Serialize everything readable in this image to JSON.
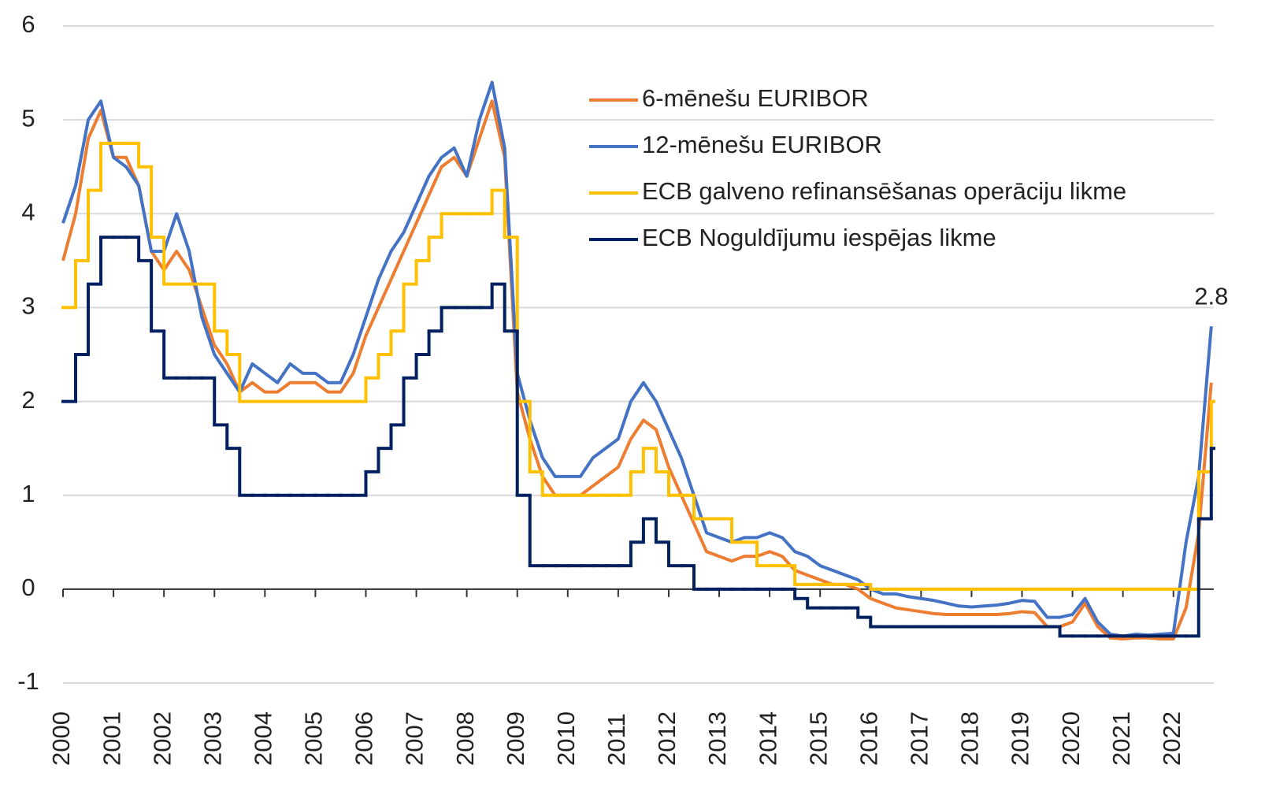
{
  "chart_data": {
    "type": "line",
    "x": [
      2000,
      2000.25,
      2000.5,
      2000.75,
      2001,
      2001.25,
      2001.5,
      2001.75,
      2002,
      2002.25,
      2002.5,
      2002.75,
      2003,
      2003.25,
      2003.5,
      2003.75,
      2004,
      2004.25,
      2004.5,
      2004.75,
      2005,
      2005.25,
      2005.5,
      2005.75,
      2006,
      2006.25,
      2006.5,
      2006.75,
      2007,
      2007.25,
      2007.5,
      2007.75,
      2008,
      2008.25,
      2008.5,
      2008.75,
      2009,
      2009.25,
      2009.5,
      2009.75,
      2010,
      2010.25,
      2010.5,
      2010.75,
      2011,
      2011.25,
      2011.5,
      2011.75,
      2012,
      2012.25,
      2012.5,
      2012.75,
      2013,
      2013.25,
      2013.5,
      2013.75,
      2014,
      2014.25,
      2014.5,
      2014.75,
      2015,
      2015.25,
      2015.5,
      2015.75,
      2016,
      2016.25,
      2016.5,
      2016.75,
      2017,
      2017.25,
      2017.5,
      2017.75,
      2018,
      2018.25,
      2018.5,
      2018.75,
      2019,
      2019.25,
      2019.5,
      2019.75,
      2020,
      2020.25,
      2020.5,
      2020.75,
      2021,
      2021.25,
      2021.5,
      2021.75,
      2022,
      2022.25,
      2022.5,
      2022.75
    ],
    "series": [
      {
        "name": "6-mēnešu EURIBOR",
        "color": "#ED7D31",
        "drawstyle": "line",
        "values": [
          3.5,
          4.0,
          4.8,
          5.1,
          4.6,
          4.6,
          4.3,
          3.6,
          3.4,
          3.6,
          3.4,
          3.0,
          2.6,
          2.4,
          2.1,
          2.2,
          2.1,
          2.1,
          2.2,
          2.2,
          2.2,
          2.1,
          2.1,
          2.3,
          2.7,
          3.0,
          3.3,
          3.6,
          3.9,
          4.2,
          4.5,
          4.6,
          4.4,
          4.8,
          5.2,
          4.6,
          2.1,
          1.6,
          1.2,
          1.0,
          1.0,
          1.0,
          1.1,
          1.2,
          1.3,
          1.6,
          1.8,
          1.7,
          1.3,
          1.0,
          0.7,
          0.4,
          0.35,
          0.3,
          0.35,
          0.35,
          0.4,
          0.35,
          0.2,
          0.15,
          0.1,
          0.05,
          0.05,
          0.0,
          -0.1,
          -0.15,
          -0.2,
          -0.22,
          -0.24,
          -0.26,
          -0.27,
          -0.27,
          -0.27,
          -0.27,
          -0.27,
          -0.26,
          -0.24,
          -0.25,
          -0.4,
          -0.4,
          -0.35,
          -0.15,
          -0.4,
          -0.52,
          -0.53,
          -0.52,
          -0.52,
          -0.53,
          -0.53,
          -0.2,
          0.6,
          2.2
        ]
      },
      {
        "name": "12-mēnešu EURIBOR",
        "color": "#4472C4",
        "drawstyle": "line",
        "values": [
          3.9,
          4.3,
          5.0,
          5.2,
          4.6,
          4.5,
          4.3,
          3.6,
          3.6,
          4.0,
          3.6,
          2.9,
          2.5,
          2.3,
          2.1,
          2.4,
          2.3,
          2.2,
          2.4,
          2.3,
          2.3,
          2.2,
          2.2,
          2.5,
          2.9,
          3.3,
          3.6,
          3.8,
          4.1,
          4.4,
          4.6,
          4.7,
          4.4,
          5.0,
          5.4,
          4.7,
          2.3,
          1.8,
          1.4,
          1.2,
          1.2,
          1.2,
          1.4,
          1.5,
          1.6,
          2.0,
          2.2,
          2.0,
          1.7,
          1.4,
          1.0,
          0.6,
          0.55,
          0.5,
          0.55,
          0.55,
          0.6,
          0.55,
          0.4,
          0.35,
          0.25,
          0.2,
          0.15,
          0.1,
          0.0,
          -0.05,
          -0.05,
          -0.08,
          -0.1,
          -0.12,
          -0.15,
          -0.18,
          -0.19,
          -0.18,
          -0.17,
          -0.15,
          -0.12,
          -0.13,
          -0.3,
          -0.3,
          -0.27,
          -0.1,
          -0.35,
          -0.48,
          -0.5,
          -0.48,
          -0.49,
          -0.48,
          -0.47,
          0.5,
          1.2,
          2.8
        ]
      },
      {
        "name": "ECB galveno refinansēšanas operāciju likme",
        "color": "#FFC000",
        "drawstyle": "steps",
        "values": [
          3.0,
          3.5,
          4.25,
          4.75,
          4.75,
          4.75,
          4.5,
          3.75,
          3.25,
          3.25,
          3.25,
          3.25,
          2.75,
          2.5,
          2.0,
          2.0,
          2.0,
          2.0,
          2.0,
          2.0,
          2.0,
          2.0,
          2.0,
          2.0,
          2.25,
          2.5,
          2.75,
          3.25,
          3.5,
          3.75,
          4.0,
          4.0,
          4.0,
          4.0,
          4.25,
          3.75,
          2.0,
          1.25,
          1.0,
          1.0,
          1.0,
          1.0,
          1.0,
          1.0,
          1.0,
          1.25,
          1.5,
          1.25,
          1.0,
          1.0,
          0.75,
          0.75,
          0.75,
          0.5,
          0.5,
          0.25,
          0.25,
          0.25,
          0.05,
          0.05,
          0.05,
          0.05,
          0.05,
          0.05,
          0.0,
          0.0,
          0.0,
          0.0,
          0.0,
          0.0,
          0.0,
          0.0,
          0.0,
          0.0,
          0.0,
          0.0,
          0.0,
          0.0,
          0.0,
          0.0,
          0.0,
          0.0,
          0.0,
          0.0,
          0.0,
          0.0,
          0.0,
          0.0,
          0.0,
          0.0,
          1.25,
          2.0
        ]
      },
      {
        "name": "ECB Noguldījumu iespējas likme",
        "color": "#002060",
        "drawstyle": "steps",
        "values": [
          2.0,
          2.5,
          3.25,
          3.75,
          3.75,
          3.75,
          3.5,
          2.75,
          2.25,
          2.25,
          2.25,
          2.25,
          1.75,
          1.5,
          1.0,
          1.0,
          1.0,
          1.0,
          1.0,
          1.0,
          1.0,
          1.0,
          1.0,
          1.0,
          1.25,
          1.5,
          1.75,
          2.25,
          2.5,
          2.75,
          3.0,
          3.0,
          3.0,
          3.0,
          3.25,
          2.75,
          1.0,
          0.25,
          0.25,
          0.25,
          0.25,
          0.25,
          0.25,
          0.25,
          0.25,
          0.5,
          0.75,
          0.5,
          0.25,
          0.25,
          0.0,
          0.0,
          0.0,
          0.0,
          0.0,
          0.0,
          0.0,
          0.0,
          -0.1,
          -0.2,
          -0.2,
          -0.2,
          -0.2,
          -0.3,
          -0.4,
          -0.4,
          -0.4,
          -0.4,
          -0.4,
          -0.4,
          -0.4,
          -0.4,
          -0.4,
          -0.4,
          -0.4,
          -0.4,
          -0.4,
          -0.4,
          -0.4,
          -0.5,
          -0.5,
          -0.5,
          -0.5,
          -0.5,
          -0.5,
          -0.5,
          -0.5,
          -0.5,
          -0.5,
          -0.5,
          0.75,
          1.5
        ]
      }
    ],
    "xlim": [
      2000,
      2022.8
    ],
    "xticks": [
      2000,
      2001,
      2002,
      2003,
      2004,
      2005,
      2006,
      2007,
      2008,
      2009,
      2010,
      2011,
      2012,
      2013,
      2014,
      2015,
      2016,
      2017,
      2018,
      2019,
      2020,
      2021,
      2022
    ],
    "ylim": [
      -1,
      6
    ],
    "yticks": [
      -1,
      0,
      1,
      2,
      3,
      4,
      5,
      6
    ],
    "grid": true,
    "annotations": [
      {
        "text": "2.8",
        "x": 2022.75,
        "y": 2.8
      }
    ]
  }
}
